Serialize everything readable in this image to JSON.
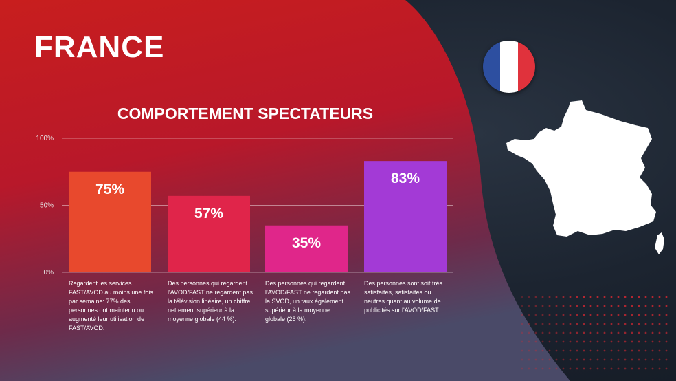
{
  "title": "FRANCE",
  "chart_data": {
    "type": "bar",
    "title": "COMPORTEMENT SPECTATEURS",
    "ylim": [
      0,
      100
    ],
    "yticks": [
      "0%",
      "50%",
      "100%"
    ],
    "grid": true,
    "values": [
      75,
      57,
      35,
      83
    ],
    "value_labels": [
      "75%",
      "57%",
      "35%",
      "83%"
    ],
    "colors": [
      "#e8492d",
      "#e0254a",
      "#e0268a",
      "#a33ad6"
    ],
    "descriptions": [
      "Regardent les services FAST/AVOD au moins une fois par semaine: 77% des personnes ont maintenu ou augmenté leur utilisation de FAST/AVOD.",
      "Des personnes qui regardent l'AVOD/FAST ne regardent pas la télévision linéaire, un chiffre nettement supérieur à la moyenne globale (44 %).",
      "Des personnes qui regardent l'AVOD/FAST ne regardent pas la SVOD, un taux également supérieur à la moyenne globale (25 %).",
      "Des personnes sont soit très satisfaites, satisfaites ou neutres quant au volume de publicités sur l'AVOD/FAST."
    ]
  },
  "flag_colors": [
    "#2d4fa0",
    "#ffffff",
    "#e0323c"
  ],
  "colors": {
    "red_background": "#c8201e",
    "dark_background": "#1c2430"
  }
}
